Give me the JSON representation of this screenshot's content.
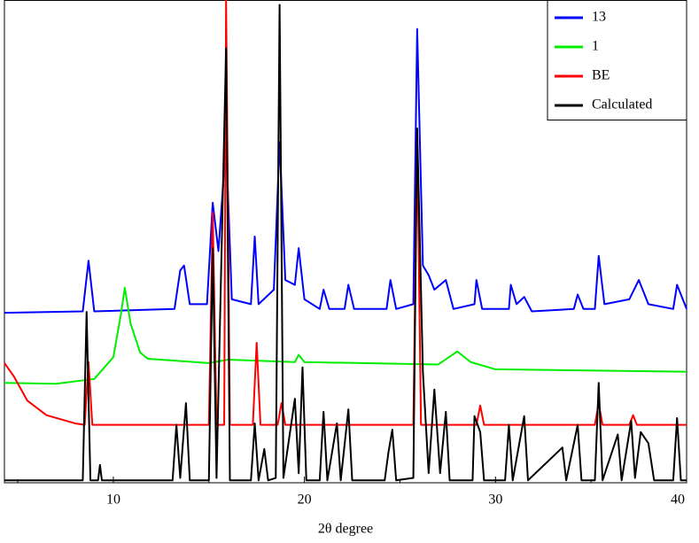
{
  "chart_data": {
    "type": "line",
    "x_label": "2θ degree",
    "xlim": [
      4.3,
      40
    ],
    "xticks": [
      10,
      20,
      30,
      40
    ],
    "minor_xticks": [
      5,
      15,
      25,
      35
    ],
    "ylim": [
      0,
      100
    ],
    "legend": "upper right",
    "series": [
      {
        "name": "13",
        "color": "#0000ff",
        "x": [
          4.3,
          8.4,
          8.7,
          9.0,
          13.2,
          13.5,
          13.7,
          14.0,
          14.9,
          15.2,
          15.5,
          15.9,
          16.2,
          17.2,
          17.4,
          17.6,
          18.4,
          18.7,
          19.0,
          19.5,
          19.7,
          20.0,
          20.8,
          21.0,
          21.3,
          22.1,
          22.3,
          22.6,
          24.3,
          24.5,
          24.8,
          25.7,
          25.9,
          26.2,
          26.5,
          26.8,
          27.4,
          27.8,
          28.9,
          29.0,
          29.3,
          30.7,
          30.8,
          31.1,
          31.5,
          31.9,
          34.1,
          34.3,
          34.6,
          35.2,
          35.4,
          35.7,
          37.0,
          37.5,
          38.0,
          39.3,
          39.5,
          40
        ],
        "values": [
          35.2,
          35.5,
          46,
          35.5,
          36,
          44,
          45,
          37,
          37,
          58,
          48,
          70.6,
          38,
          37,
          51,
          37,
          40,
          70.6,
          42,
          41,
          48.6,
          38,
          36,
          40,
          36,
          36,
          41,
          36,
          36,
          42,
          36,
          37,
          94,
          45,
          43,
          40,
          42,
          36,
          37,
          42,
          36,
          36,
          41,
          37,
          38.5,
          35.5,
          36,
          39,
          36,
          36,
          47,
          37,
          38,
          42,
          37,
          36,
          41,
          36
        ]
      },
      {
        "name": "1",
        "color": "#00ee00",
        "x": [
          4.3,
          7,
          9,
          10,
          10.4,
          10.6,
          10.9,
          11.4,
          11.8,
          15,
          16,
          19.5,
          19.7,
          20,
          27,
          28,
          28.7,
          30,
          40
        ],
        "values": [
          20.7,
          20.5,
          21.5,
          26,
          35,
          40.4,
          33,
          27,
          25.7,
          24.8,
          25.5,
          25,
          26.5,
          25,
          24.5,
          27.2,
          25,
          23.5,
          23
        ]
      },
      {
        "name": "BE",
        "color": "#ff0000",
        "x": [
          4.3,
          4.8,
          5.5,
          6.5,
          8.0,
          8.5,
          8.7,
          8.9,
          15.0,
          15.2,
          15.4,
          15.8,
          15.9,
          16.1,
          17.3,
          17.5,
          17.7,
          18.6,
          18.8,
          19.0,
          25.7,
          25.9,
          26.1,
          29.0,
          29.2,
          29.4,
          35.2,
          35.4,
          35.6,
          37.0,
          37.2,
          37.4,
          40
        ],
        "values": [
          24.8,
          22,
          17,
          14,
          12.3,
          12,
          25,
          12,
          12,
          56,
          12,
          12,
          100,
          12,
          12,
          29,
          12,
          12,
          16.5,
          12,
          12,
          72.5,
          12,
          12,
          16,
          12,
          12,
          16.5,
          12,
          12,
          14,
          12,
          12
        ]
      },
      {
        "name": "Calculated",
        "color": "#000000",
        "x": [
          4.3,
          8.4,
          8.6,
          8.8,
          9.2,
          9.3,
          9.4,
          13.1,
          13.3,
          13.5,
          13.8,
          14.0,
          15.0,
          15.2,
          15.4,
          15.9,
          16.1,
          17.2,
          17.4,
          17.6,
          17.9,
          18.1,
          18.5,
          18.7,
          18.9,
          19.5,
          19.7,
          19.9,
          20.1,
          20.8,
          21.0,
          21.2,
          21.7,
          21.9,
          22.3,
          22.5,
          24.2,
          24.4,
          24.6,
          24.8,
          25.7,
          25.9,
          26.2,
          26.5,
          26.8,
          27.1,
          27.4,
          27.6,
          28.8,
          28.9,
          29.2,
          29.4,
          30.5,
          30.7,
          30.9,
          31.5,
          31.7,
          33.5,
          33.7,
          34.3,
          34.5,
          35.2,
          35.4,
          35.6,
          36.4,
          36.6,
          37.1,
          37.3,
          37.6,
          38,
          38.3,
          39.3,
          39.5,
          39.7,
          40
        ],
        "values": [
          0.5,
          0.5,
          35.4,
          0.5,
          0.5,
          3.7,
          0.5,
          0.5,
          12,
          1,
          16.5,
          0.5,
          0.5,
          48.6,
          1,
          90,
          0.5,
          0.5,
          12.3,
          0.5,
          7,
          0.5,
          1,
          99,
          1,
          17.4,
          2,
          23.9,
          0.5,
          0.5,
          14.7,
          0.5,
          12.3,
          0.5,
          15.2,
          0.5,
          0.5,
          6.4,
          11,
          0.5,
          1,
          73.4,
          23,
          2,
          19.3,
          2,
          14.7,
          0.5,
          0.5,
          13.8,
          10.5,
          0.5,
          0.5,
          12,
          0.5,
          13.8,
          0.5,
          7.3,
          0.5,
          12,
          0.5,
          0.5,
          20.7,
          0.5,
          10,
          0.5,
          12.8,
          1,
          10.5,
          8.2,
          0.5,
          0.5,
          13.4,
          0.5,
          0.5
        ]
      }
    ]
  }
}
